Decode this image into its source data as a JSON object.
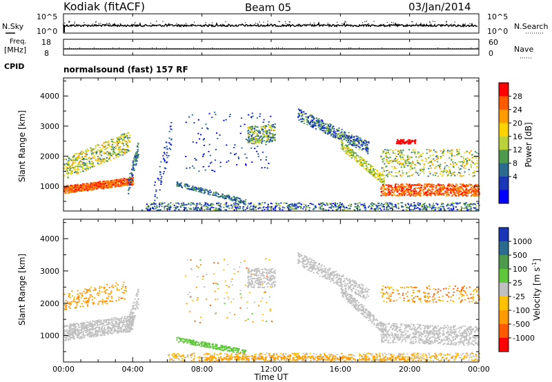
{
  "header": {
    "station": "Kodiak (fitACF)",
    "beam": "Beam 05",
    "date": "03/Jan/2014"
  },
  "top_panels": {
    "nsky_label": "N.Sky",
    "nsky_ticks": [
      "10^5",
      "10^0"
    ],
    "nsearch_label": "N.Search",
    "nsearch_ticks": [
      "10^5",
      "10^0"
    ],
    "freq_label": "Freq.",
    "freq_unit": "[MHz]",
    "freq_ticks": [
      "18",
      "8"
    ],
    "nave_label": "Nave",
    "nave_ticks": [
      "60",
      "0"
    ],
    "cpid_label": "CPID",
    "cpid_value": "normalsound (fast) 157 RF"
  },
  "chart_data": [
    {
      "type": "heatmap",
      "panel": "power",
      "ylabel": "Slant Range [km]",
      "yticks": [
        1000,
        2000,
        3000,
        4000
      ],
      "ylim": [
        180,
        4600
      ],
      "xlim": [
        0,
        24
      ],
      "xticks": [
        "00:00",
        "04:00",
        "08:00",
        "12:00",
        "16:00",
        "20:00",
        "00:00"
      ],
      "colorbar": {
        "label": "Power [dB]",
        "ticks": [
          "28",
          "24",
          "20",
          "16",
          "12",
          "8",
          "4"
        ],
        "colors": [
          "#ff0000",
          "#ff5a00",
          "#ff9a00",
          "#ffd200",
          "#bcd23a",
          "#4d9a4d",
          "#2a6b8f",
          "#1a36b8",
          "#0000ff"
        ]
      }
    },
    {
      "type": "heatmap",
      "panel": "velocity",
      "ylabel": "Slant Range [km]",
      "yticks": [
        1000,
        2000,
        3000,
        4000
      ],
      "ylim": [
        180,
        4600
      ],
      "xlim": [
        0,
        24
      ],
      "xticks": [
        "00:00",
        "04:00",
        "08:00",
        "12:00",
        "16:00",
        "20:00",
        "00:00"
      ],
      "xlabel": "Time UT",
      "colorbar": {
        "label": "Velocity [m s",
        "label_sup": "-1",
        "label_end": "]",
        "ticks": [
          "1000",
          "500",
          "100",
          "25",
          "-25",
          "-100",
          "-500",
          "-1000"
        ],
        "colors": [
          "#1a36b8",
          "#2a6b8f",
          "#4d9a4d",
          "#5fc83a",
          "#c0c0c0",
          "#ffc000",
          "#ff9a00",
          "#ff5a00",
          "#ff0000"
        ]
      }
    }
  ]
}
